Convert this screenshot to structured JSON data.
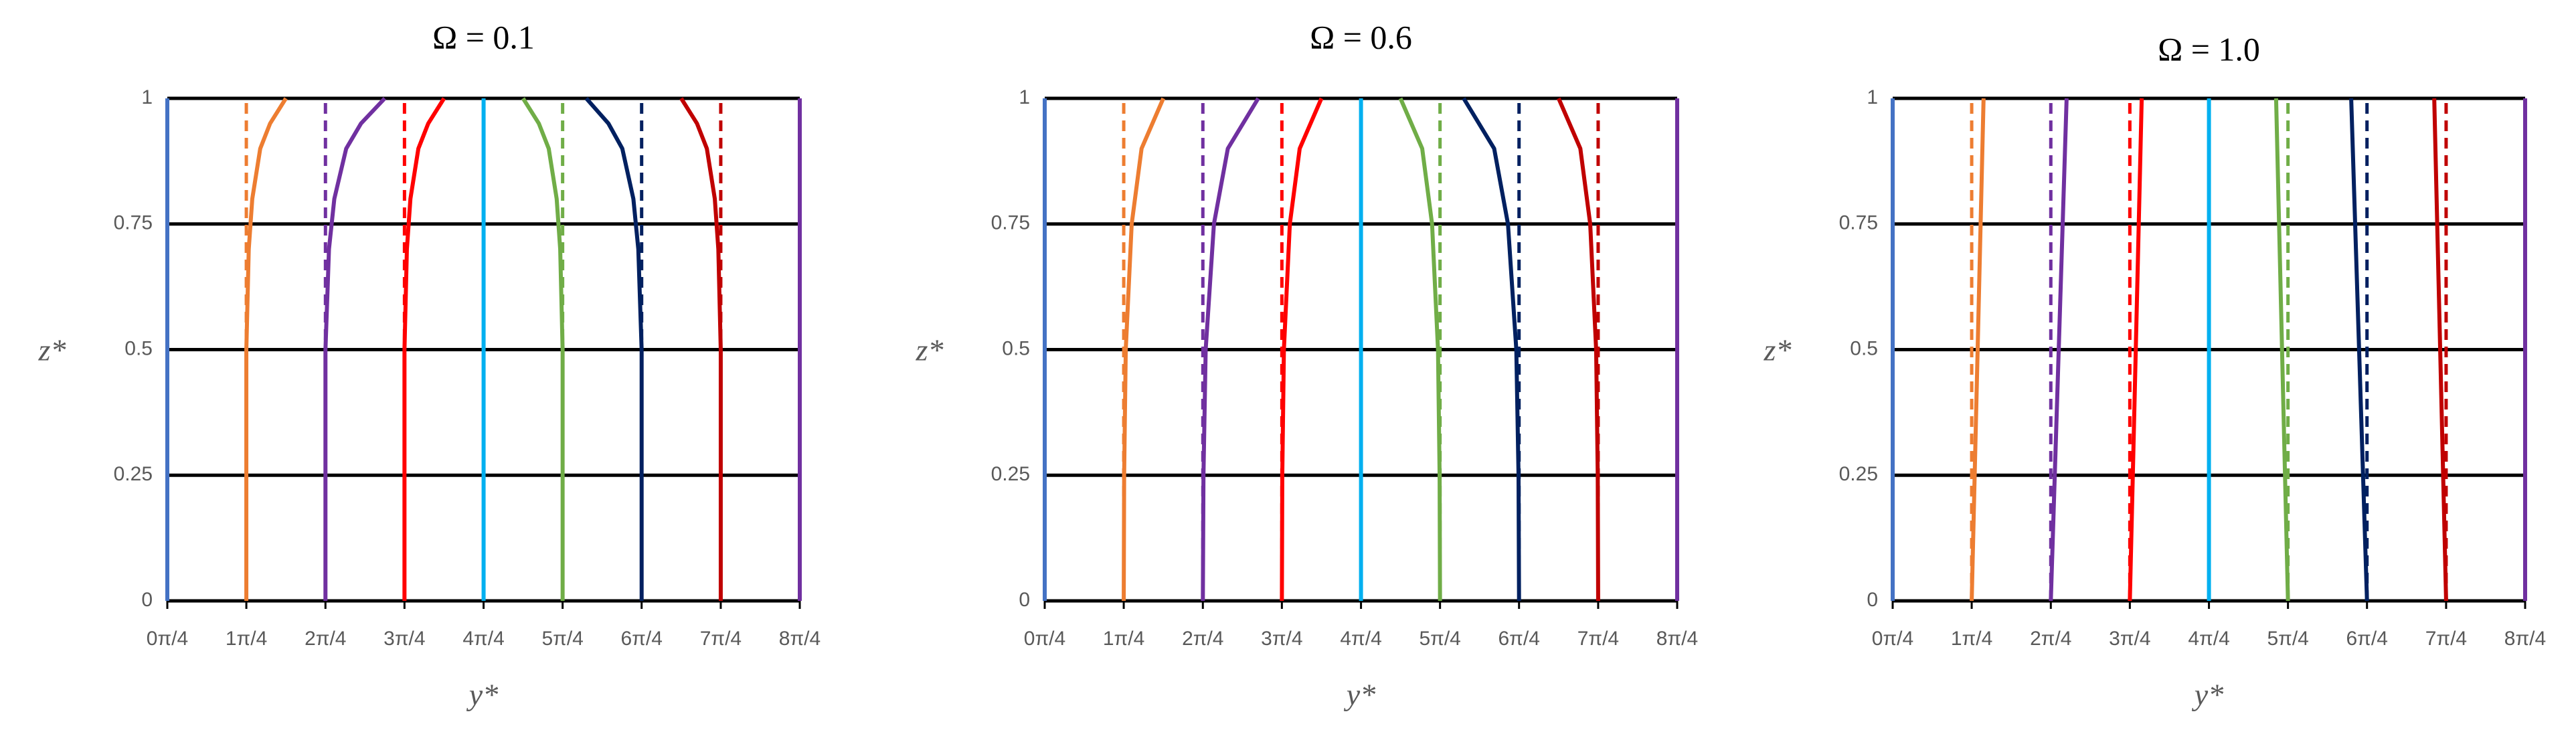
{
  "chart_data": [
    {
      "type": "line",
      "title": "Ω = 0.1",
      "x_label": "y*",
      "y_label": "z*",
      "xlim": [
        0,
        6.283
      ],
      "ylim": [
        0,
        1
      ],
      "grid": true,
      "xticks": [
        {
          "value": 0,
          "label": "0π/4"
        },
        {
          "value": 0.785,
          "label": "1π/4"
        },
        {
          "value": 1.571,
          "label": "2π/4"
        },
        {
          "value": 2.356,
          "label": "3π/4"
        },
        {
          "value": 3.142,
          "label": "4π/4"
        },
        {
          "value": 3.927,
          "label": "5π/4"
        },
        {
          "value": 4.712,
          "label": "6π/4"
        },
        {
          "value": 5.498,
          "label": "7π/4"
        },
        {
          "value": 6.283,
          "label": "8π/4"
        }
      ],
      "yticks": [
        0,
        0.25,
        0.5,
        0.75,
        1
      ],
      "series": [
        {
          "color": "#4472c4",
          "x": [
            0,
            0
          ],
          "y": [
            0,
            1
          ]
        },
        {
          "color": "#ed7d31",
          "dash": true,
          "x": [
            0.785,
            0.785
          ],
          "y": [
            0,
            1
          ]
        },
        {
          "color": "#7030a0",
          "dash": true,
          "x": [
            1.571,
            1.571
          ],
          "y": [
            0,
            1
          ]
        },
        {
          "color": "#ff0000",
          "dash": true,
          "x": [
            2.356,
            2.356
          ],
          "y": [
            0,
            1
          ]
        },
        {
          "color": "#70ad47",
          "dash": true,
          "x": [
            3.927,
            3.927
          ],
          "y": [
            0,
            1
          ]
        },
        {
          "color": "#002060",
          "dash": true,
          "x": [
            4.712,
            4.712
          ],
          "y": [
            0,
            1
          ]
        },
        {
          "color": "#c00000",
          "dash": true,
          "x": [
            5.498,
            5.498
          ],
          "y": [
            0,
            1
          ]
        },
        {
          "color": "#ed7d31",
          "x": [
            0.785,
            0.785,
            0.809,
            0.844,
            0.923,
            1.021,
            1.178
          ],
          "y": [
            0,
            0.5,
            0.7,
            0.8,
            0.9,
            0.95,
            1
          ]
        },
        {
          "color": "#7030a0",
          "x": [
            1.571,
            1.571,
            1.606,
            1.659,
            1.777,
            1.924,
            2.16
          ],
          "y": [
            0,
            0.5,
            0.7,
            0.8,
            0.9,
            0.95,
            1
          ]
        },
        {
          "color": "#ff0000",
          "x": [
            2.356,
            2.356,
            2.38,
            2.415,
            2.494,
            2.592,
            2.749
          ],
          "y": [
            0,
            0.5,
            0.7,
            0.8,
            0.9,
            0.95,
            1
          ]
        },
        {
          "color": "#00b0f0",
          "x": [
            3.142,
            3.142
          ],
          "y": [
            0,
            1
          ]
        },
        {
          "color": "#70ad47",
          "x": [
            3.927,
            3.927,
            3.903,
            3.868,
            3.789,
            3.691,
            3.534
          ],
          "y": [
            0,
            0.5,
            0.7,
            0.8,
            0.9,
            0.95,
            1
          ]
        },
        {
          "color": "#002060",
          "x": [
            4.712,
            4.712,
            4.679,
            4.63,
            4.52,
            4.382,
            4.162
          ],
          "y": [
            0,
            0.5,
            0.7,
            0.8,
            0.9,
            0.95,
            1
          ]
        },
        {
          "color": "#c00000",
          "x": [
            5.498,
            5.498,
            5.474,
            5.439,
            5.36,
            5.262,
            5.105
          ],
          "y": [
            0,
            0.5,
            0.7,
            0.8,
            0.9,
            0.95,
            1
          ]
        },
        {
          "color": "#7030a0",
          "x": [
            6.283,
            6.283
          ],
          "y": [
            0,
            1
          ]
        }
      ]
    },
    {
      "type": "line",
      "title": "Ω = 0.6",
      "x_label": "y*",
      "y_label": "z*",
      "xlim": [
        0,
        6.283
      ],
      "ylim": [
        0,
        1
      ],
      "grid": true,
      "xticks": [
        {
          "value": 0,
          "label": "0π/4"
        },
        {
          "value": 0.785,
          "label": "1π/4"
        },
        {
          "value": 1.571,
          "label": "2π/4"
        },
        {
          "value": 2.356,
          "label": "3π/4"
        },
        {
          "value": 3.142,
          "label": "4π/4"
        },
        {
          "value": 3.927,
          "label": "5π/4"
        },
        {
          "value": 4.712,
          "label": "6π/4"
        },
        {
          "value": 5.498,
          "label": "7π/4"
        },
        {
          "value": 6.283,
          "label": "8π/4"
        }
      ],
      "yticks": [
        0,
        0.25,
        0.5,
        0.75,
        1
      ],
      "series": [
        {
          "color": "#4472c4",
          "x": [
            0,
            0
          ],
          "y": [
            0,
            1
          ]
        },
        {
          "color": "#ed7d31",
          "dash": true,
          "x": [
            0.785,
            0.785
          ],
          "y": [
            0,
            1
          ]
        },
        {
          "color": "#7030a0",
          "dash": true,
          "x": [
            1.571,
            1.571
          ],
          "y": [
            0,
            1
          ]
        },
        {
          "color": "#ff0000",
          "dash": true,
          "x": [
            2.356,
            2.356
          ],
          "y": [
            0,
            1
          ]
        },
        {
          "color": "#70ad47",
          "dash": true,
          "x": [
            3.927,
            3.927
          ],
          "y": [
            0,
            1
          ]
        },
        {
          "color": "#002060",
          "dash": true,
          "x": [
            4.712,
            4.712
          ],
          "y": [
            0,
            1
          ]
        },
        {
          "color": "#c00000",
          "dash": true,
          "x": [
            5.498,
            5.498
          ],
          "y": [
            0,
            1
          ]
        },
        {
          "color": "#ed7d31",
          "x": [
            0.785,
            0.789,
            0.805,
            0.864,
            0.962,
            1.178
          ],
          "y": [
            0,
            0.25,
            0.5,
            0.75,
            0.9,
            1
          ]
        },
        {
          "color": "#7030a0",
          "x": [
            1.571,
            1.577,
            1.599,
            1.681,
            1.819,
            2.121
          ],
          "y": [
            0,
            0.25,
            0.5,
            0.75,
            0.9,
            1
          ]
        },
        {
          "color": "#ff0000",
          "x": [
            2.356,
            2.36,
            2.376,
            2.435,
            2.533,
            2.749
          ],
          "y": [
            0,
            0.25,
            0.5,
            0.75,
            0.9,
            1
          ]
        },
        {
          "color": "#00b0f0",
          "x": [
            3.142,
            3.142
          ],
          "y": [
            0,
            1
          ]
        },
        {
          "color": "#70ad47",
          "x": [
            3.927,
            3.923,
            3.907,
            3.848,
            3.75,
            3.534
          ],
          "y": [
            0,
            0.25,
            0.5,
            0.75,
            0.9,
            1
          ]
        },
        {
          "color": "#002060",
          "x": [
            4.712,
            4.707,
            4.685,
            4.602,
            4.465,
            4.162
          ],
          "y": [
            0,
            0.25,
            0.5,
            0.75,
            0.9,
            1
          ]
        },
        {
          "color": "#c00000",
          "x": [
            5.498,
            5.494,
            5.478,
            5.419,
            5.321,
            5.105
          ],
          "y": [
            0,
            0.25,
            0.5,
            0.75,
            0.9,
            1
          ]
        },
        {
          "color": "#7030a0",
          "x": [
            6.283,
            6.283
          ],
          "y": [
            0,
            1
          ]
        }
      ]
    },
    {
      "type": "line",
      "title": "Ω = 1.0",
      "x_label": "y*",
      "y_label": "z*",
      "xlim": [
        0,
        6.283
      ],
      "ylim": [
        0,
        1
      ],
      "grid": true,
      "xticks": [
        {
          "value": 0,
          "label": "0π/4"
        },
        {
          "value": 0.785,
          "label": "1π/4"
        },
        {
          "value": 1.571,
          "label": "2π/4"
        },
        {
          "value": 2.356,
          "label": "3π/4"
        },
        {
          "value": 3.142,
          "label": "4π/4"
        },
        {
          "value": 3.927,
          "label": "5π/4"
        },
        {
          "value": 4.712,
          "label": "6π/4"
        },
        {
          "value": 5.498,
          "label": "7π/4"
        },
        {
          "value": 6.283,
          "label": "8π/4"
        }
      ],
      "yticks": [
        0,
        0.25,
        0.5,
        0.75,
        1
      ],
      "series": [
        {
          "color": "#4472c4",
          "x": [
            0,
            0
          ],
          "y": [
            0,
            1
          ]
        },
        {
          "color": "#ed7d31",
          "dash": true,
          "x": [
            0.785,
            0.785
          ],
          "y": [
            0,
            1
          ]
        },
        {
          "color": "#7030a0",
          "dash": true,
          "x": [
            1.571,
            1.571
          ],
          "y": [
            0,
            1
          ]
        },
        {
          "color": "#ff0000",
          "dash": true,
          "x": [
            2.356,
            2.356
          ],
          "y": [
            0,
            1
          ]
        },
        {
          "color": "#70ad47",
          "dash": true,
          "x": [
            3.927,
            3.927
          ],
          "y": [
            0,
            1
          ]
        },
        {
          "color": "#002060",
          "dash": true,
          "x": [
            4.712,
            4.712
          ],
          "y": [
            0,
            1
          ]
        },
        {
          "color": "#c00000",
          "dash": true,
          "x": [
            5.498,
            5.498
          ],
          "y": [
            0,
            1
          ]
        },
        {
          "color": "#ed7d31",
          "x": [
            0.785,
            0.903
          ],
          "y": [
            0,
            1
          ]
        },
        {
          "color": "#7030a0",
          "x": [
            1.571,
            1.728
          ],
          "y": [
            0,
            1
          ]
        },
        {
          "color": "#ff0000",
          "x": [
            2.356,
            2.474
          ],
          "y": [
            0,
            1
          ]
        },
        {
          "color": "#00b0f0",
          "x": [
            3.142,
            3.142
          ],
          "y": [
            0,
            1
          ]
        },
        {
          "color": "#70ad47",
          "x": [
            3.927,
            3.809
          ],
          "y": [
            0,
            1
          ]
        },
        {
          "color": "#002060",
          "x": [
            4.712,
            4.555
          ],
          "y": [
            0,
            1
          ]
        },
        {
          "color": "#c00000",
          "x": [
            5.498,
            5.38
          ],
          "y": [
            0,
            1
          ]
        },
        {
          "color": "#7030a0",
          "x": [
            6.283,
            6.283
          ],
          "y": [
            0,
            1
          ]
        }
      ]
    }
  ]
}
